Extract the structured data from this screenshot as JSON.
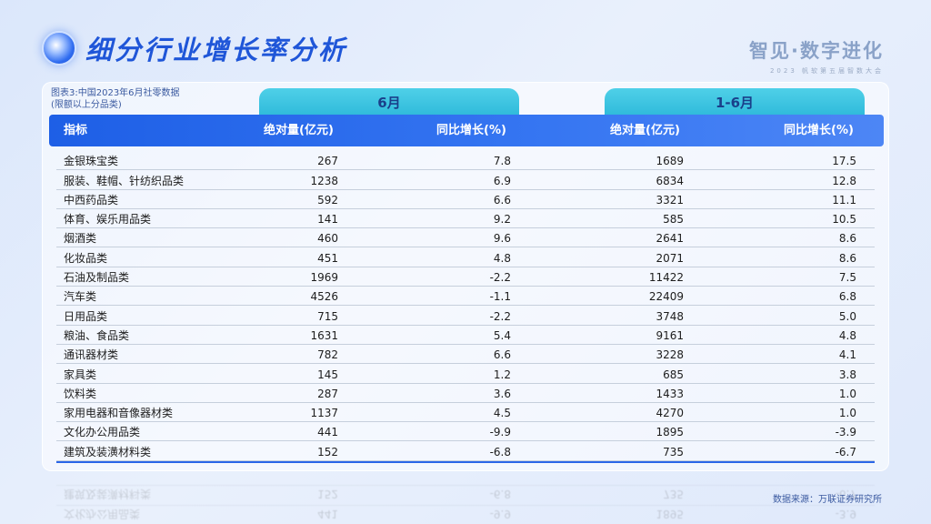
{
  "header": {
    "title": "细分行业增长率分析",
    "brand_main": "智见·数字进化",
    "brand_sub": "2023 帆软第五届智数大会"
  },
  "note": {
    "line1": "图表3:中国2023年6月社零数据",
    "line2": "(限额以上分品类)"
  },
  "groups": {
    "month": "6月",
    "ytd": "1-6月"
  },
  "columns": {
    "name": "指标",
    "m_abs": "绝对量(亿元)",
    "m_yoy": "同比增长(%)",
    "y_abs": "绝对量(亿元)",
    "y_yoy": "同比增长(%)"
  },
  "rows": [
    {
      "name": "金银珠宝类",
      "m_abs": "267",
      "m_yoy": "7.8",
      "y_abs": "1689",
      "y_yoy": "17.5"
    },
    {
      "name": "服装、鞋帽、针纺织品类",
      "m_abs": "1238",
      "m_yoy": "6.9",
      "y_abs": "6834",
      "y_yoy": "12.8"
    },
    {
      "name": "中西药品类",
      "m_abs": "592",
      "m_yoy": "6.6",
      "y_abs": "3321",
      "y_yoy": "11.1"
    },
    {
      "name": "体育、娱乐用品类",
      "m_abs": "141",
      "m_yoy": "9.2",
      "y_abs": "585",
      "y_yoy": "10.5"
    },
    {
      "name": "烟酒类",
      "m_abs": "460",
      "m_yoy": "9.6",
      "y_abs": "2641",
      "y_yoy": "8.6"
    },
    {
      "name": "化妆品类",
      "m_abs": "451",
      "m_yoy": "4.8",
      "y_abs": "2071",
      "y_yoy": "8.6"
    },
    {
      "name": "石油及制品类",
      "m_abs": "1969",
      "m_yoy": "-2.2",
      "y_abs": "11422",
      "y_yoy": "7.5"
    },
    {
      "name": "汽车类",
      "m_abs": "4526",
      "m_yoy": "-1.1",
      "y_abs": "22409",
      "y_yoy": "6.8"
    },
    {
      "name": "日用品类",
      "m_abs": "715",
      "m_yoy": "-2.2",
      "y_abs": "3748",
      "y_yoy": "5.0"
    },
    {
      "name": "粮油、食品类",
      "m_abs": "1631",
      "m_yoy": "5.4",
      "y_abs": "9161",
      "y_yoy": "4.8"
    },
    {
      "name": "通讯器材类",
      "m_abs": "782",
      "m_yoy": "6.6",
      "y_abs": "3228",
      "y_yoy": "4.1"
    },
    {
      "name": "家具类",
      "m_abs": "145",
      "m_yoy": "1.2",
      "y_abs": "685",
      "y_yoy": "3.8"
    },
    {
      "name": "饮料类",
      "m_abs": "287",
      "m_yoy": "3.6",
      "y_abs": "1433",
      "y_yoy": "1.0"
    },
    {
      "name": "家用电器和音像器材类",
      "m_abs": "1137",
      "m_yoy": "4.5",
      "y_abs": "4270",
      "y_yoy": "1.0"
    },
    {
      "name": "文化办公用品类",
      "m_abs": "441",
      "m_yoy": "-9.9",
      "y_abs": "1895",
      "y_yoy": "-3.9"
    },
    {
      "name": "建筑及装潢材料类",
      "m_abs": "152",
      "m_yoy": "-6.8",
      "y_abs": "735",
      "y_yoy": "-6.7"
    }
  ],
  "source": "数据来源：万联证券研究所"
}
